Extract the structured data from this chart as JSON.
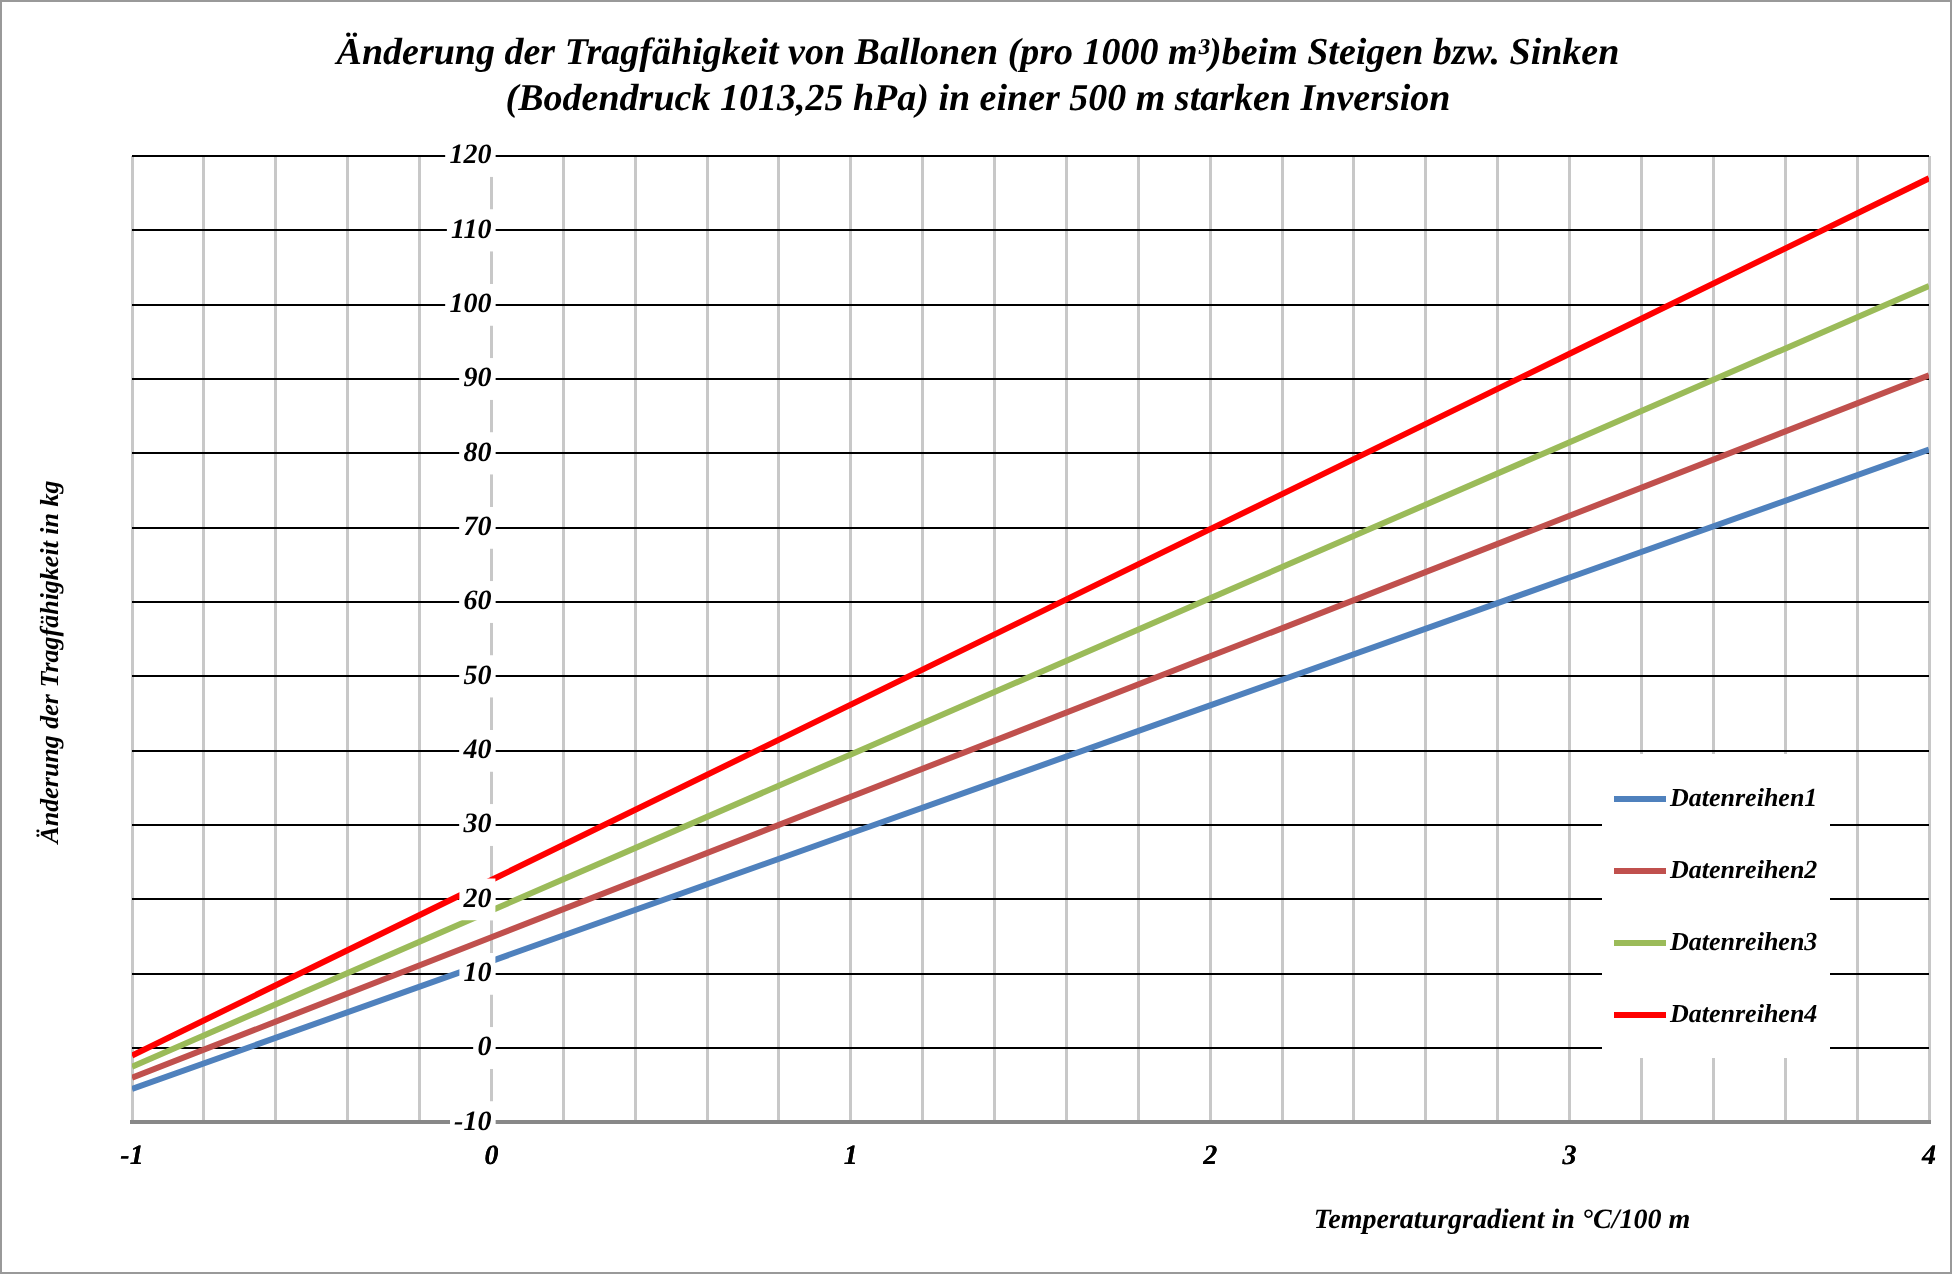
{
  "chart_data": {
    "type": "line",
    "title": "Änderung der Tragfähigkeit  von Ballonen (pro 1000 m³)beim Steigen bzw. Sinken\n(Bodendruck 1013,25 hPa) in einer 500 m starken Inversion",
    "xlabel": "Temperaturgradient in °C/100 m",
    "ylabel": "Änderung der Tragfähigkeit in kg",
    "x": [
      -1,
      0,
      1,
      2,
      3,
      4
    ],
    "series": [
      {
        "name": "Datenreihen1",
        "color": "#4f81bd",
        "values": [
          -5.5,
          11.7,
          28.9,
          46.1,
          63.3,
          80.5
        ]
      },
      {
        "name": "Datenreihen2",
        "color": "#c0504d",
        "values": [
          -4,
          14.9,
          33.8,
          52.7,
          71.6,
          90.5
        ]
      },
      {
        "name": "Datenreihen3",
        "color": "#9bbb59",
        "values": [
          -2.5,
          18.5,
          39.5,
          60.5,
          81.5,
          102.5
        ]
      },
      {
        "name": "Datenreihen4",
        "color": "#ff0000",
        "values": [
          -1,
          22.6,
          46.2,
          69.8,
          93.4,
          117
        ]
      }
    ],
    "xlim": [
      -1,
      4
    ],
    "xticks": [
      -1,
      {
        "value": -0.8,
        "label": null
      },
      {
        "value": -0.6,
        "label": null
      },
      {
        "value": -0.4,
        "label": null
      },
      {
        "value": -0.2,
        "label": null
      },
      0,
      {
        "value": 0.2,
        "label": null
      },
      {
        "value": 0.4,
        "label": null
      },
      {
        "value": 0.6,
        "label": null
      },
      {
        "value": 0.8,
        "label": null
      },
      1,
      {
        "value": 1.2,
        "label": null
      },
      {
        "value": 1.4,
        "label": null
      },
      {
        "value": 1.6,
        "label": null
      },
      {
        "value": 1.8,
        "label": null
      },
      2,
      {
        "value": 2.2,
        "label": null
      },
      {
        "value": 2.4,
        "label": null
      },
      {
        "value": 2.6,
        "label": null
      },
      {
        "value": 2.8,
        "label": null
      },
      3,
      {
        "value": 3.2,
        "label": null
      },
      {
        "value": 3.4,
        "label": null
      },
      {
        "value": 3.6,
        "label": null
      },
      {
        "value": 3.8,
        "label": null
      },
      4
    ],
    "ylim": [
      -10,
      120
    ],
    "yticks": [
      -10,
      0,
      10,
      20,
      30,
      40,
      50,
      60,
      70,
      80,
      90,
      100,
      110,
      120
    ],
    "grid": true,
    "legend": "right",
    "marker": "none",
    "line_style": "solid"
  }
}
